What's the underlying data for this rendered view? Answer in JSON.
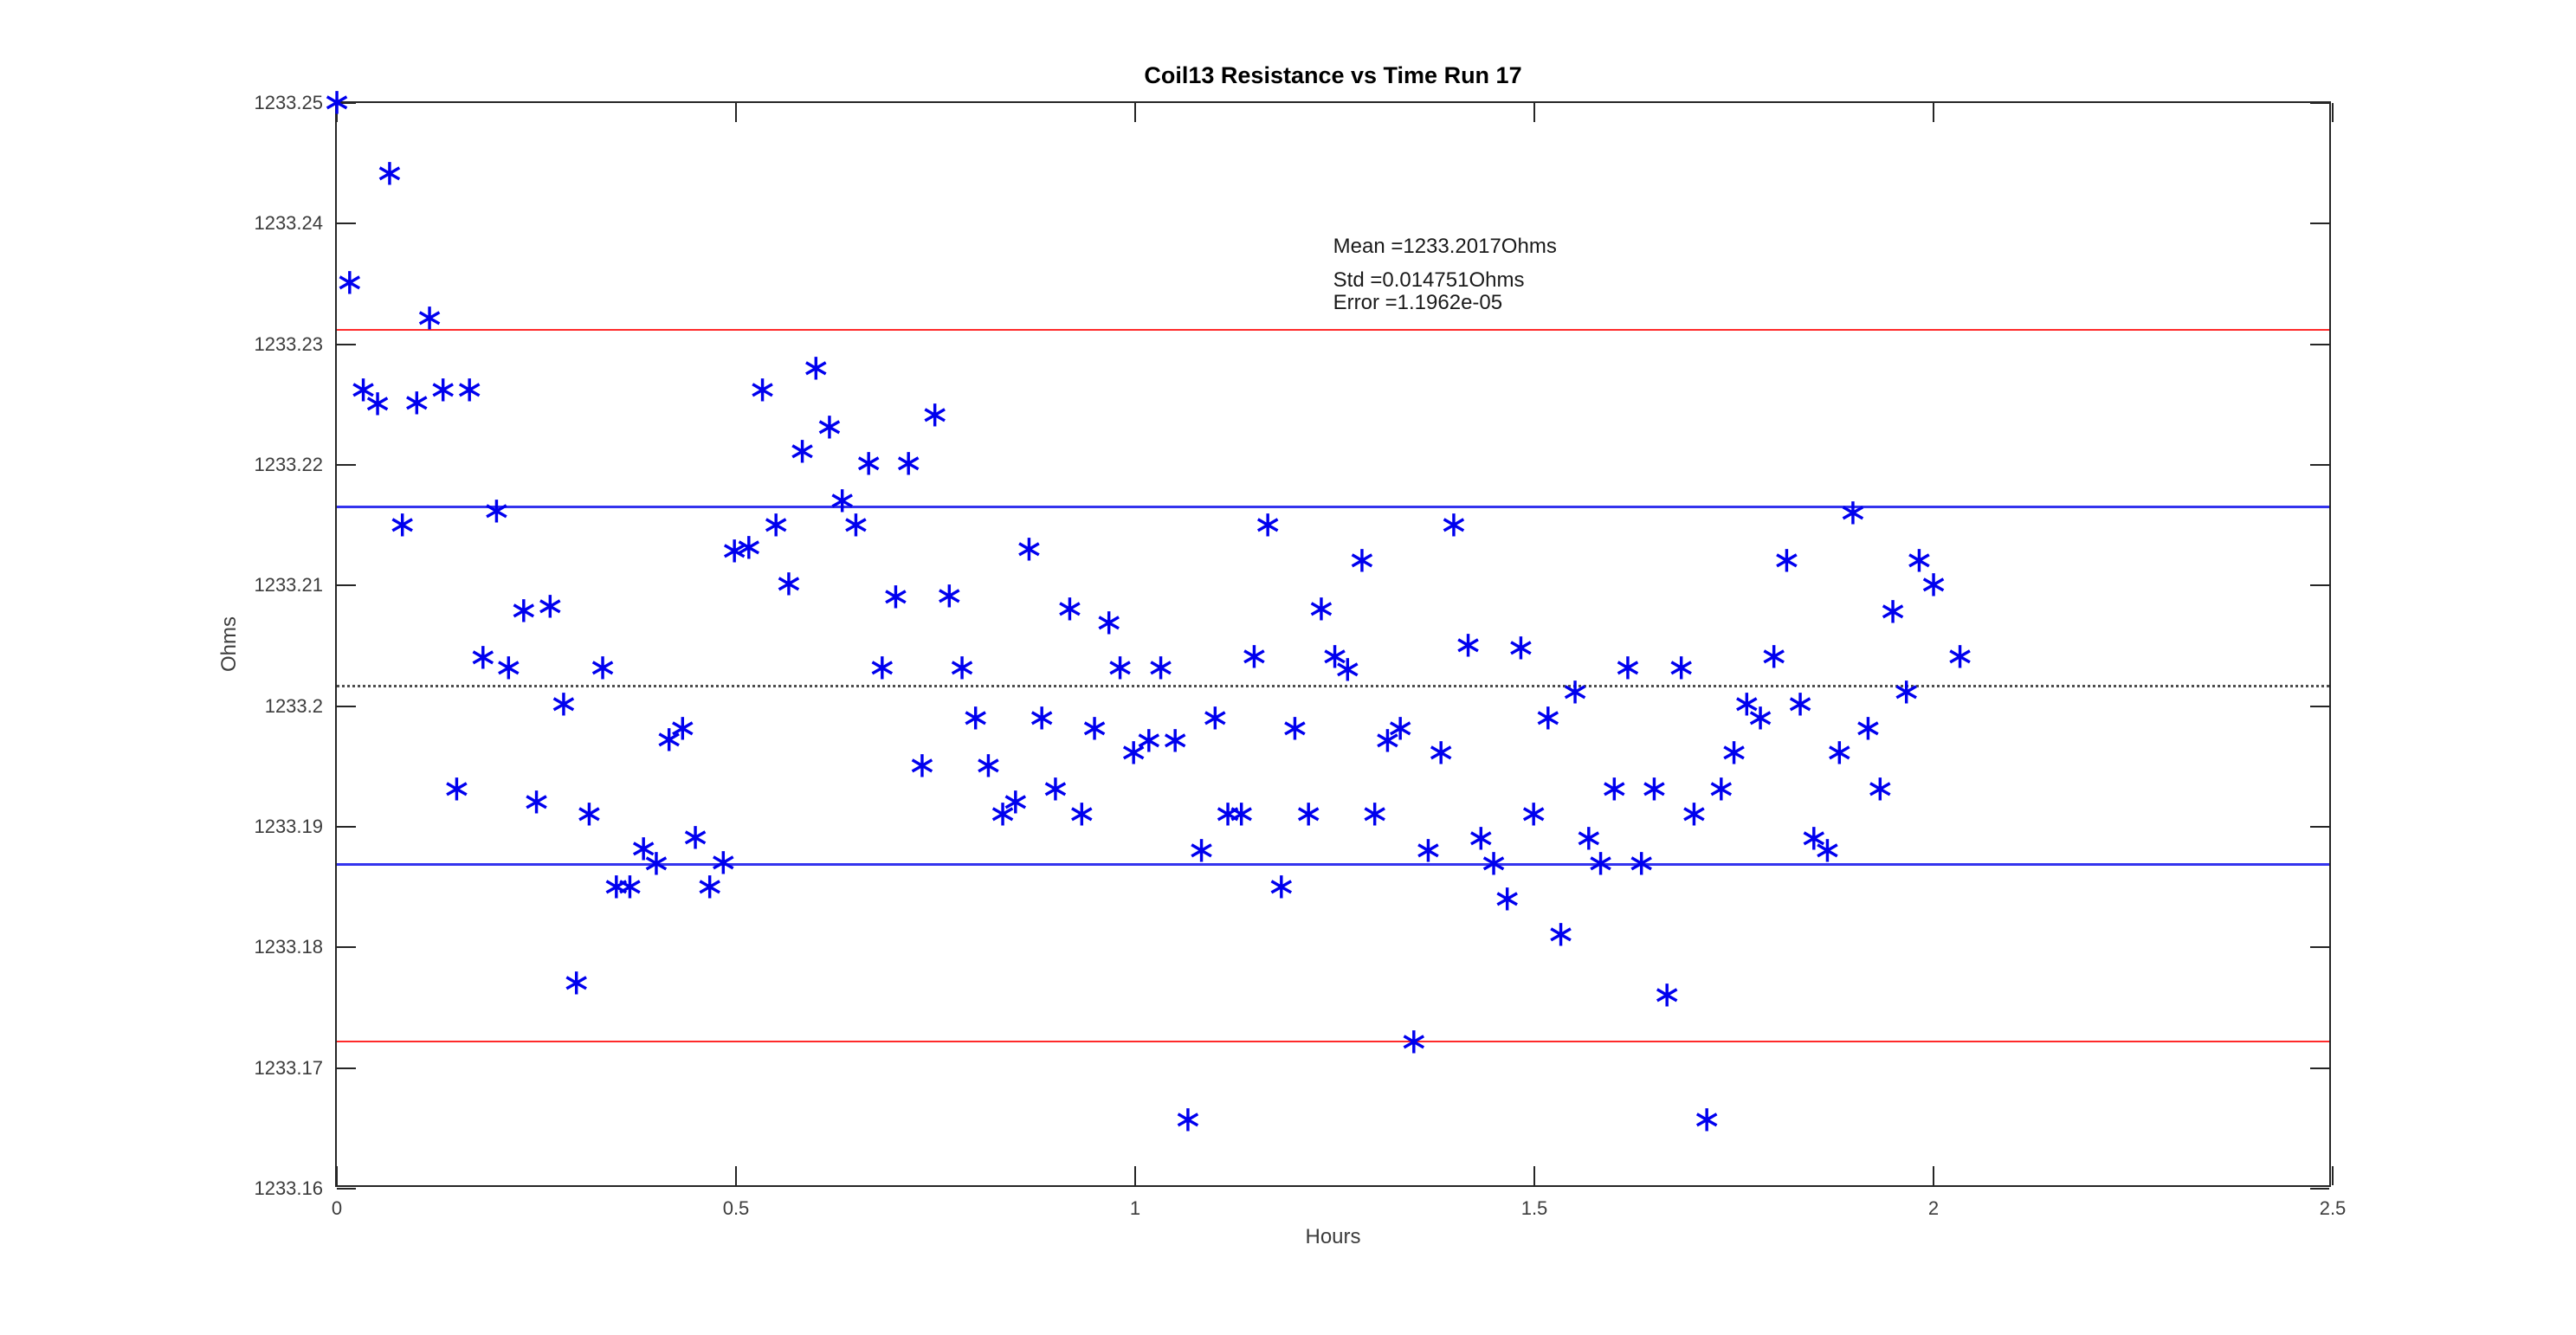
{
  "window": {
    "background": "#ffffff"
  },
  "chart_data": {
    "type": "scatter",
    "title": "Coil13 Resistance vs Time Run 17",
    "xlabel": "Hours",
    "ylabel": "Ohms",
    "xlim": [
      0,
      2.5
    ],
    "ylim": [
      1233.16,
      1233.25
    ],
    "grid": false,
    "marker": {
      "glyph": "∗",
      "color": "#0000ee",
      "semantic": "blue-asterisk-marker"
    },
    "xticks": [
      {
        "value": 0,
        "label": "0"
      },
      {
        "value": 0.5,
        "label": "0.5"
      },
      {
        "value": 1,
        "label": "1"
      },
      {
        "value": 1.5,
        "label": "1.5"
      },
      {
        "value": 2,
        "label": "2"
      },
      {
        "value": 2.5,
        "label": "2.5"
      }
    ],
    "yticks": [
      {
        "value": 1233.25,
        "label": "1233.25"
      },
      {
        "value": 1233.24,
        "label": "1233.24"
      },
      {
        "value": 1233.23,
        "label": "1233.23"
      },
      {
        "value": 1233.22,
        "label": "1233.22"
      },
      {
        "value": 1233.21,
        "label": "1233.21"
      },
      {
        "value": 1233.2,
        "label": "1233.2"
      },
      {
        "value": 1233.19,
        "label": "1233.19"
      },
      {
        "value": 1233.18,
        "label": "1233.18"
      },
      {
        "value": 1233.17,
        "label": "1233.17"
      },
      {
        "value": 1233.16,
        "label": "1233.16"
      }
    ],
    "lines": [
      {
        "name": "mean-line",
        "value": 1233.2017,
        "style": "dotted",
        "color": "#4d4d4d"
      },
      {
        "name": "plus-std-line",
        "value": 1233.2165,
        "style": "solid",
        "color": "#3333ee"
      },
      {
        "name": "minus-std-line",
        "value": 1233.1869,
        "style": "solid",
        "color": "#3333ee"
      },
      {
        "name": "plus-2std-line",
        "value": 1233.2312,
        "style": "thin",
        "color": "#ff2a2a"
      },
      {
        "name": "minus-2std-line",
        "value": 1233.1722,
        "style": "thin",
        "color": "#ff2a2a"
      }
    ],
    "annotations": [
      {
        "text": "Mean =1233.2017Ohms",
        "x": 1.248,
        "y": 1233.2381
      },
      {
        "text": "Std =0.014751Ohms",
        "x": 1.248,
        "y": 1233.2353
      },
      {
        "text": "Error =1.1962e-05",
        "x": 1.248,
        "y": 1233.2334
      }
    ],
    "stats": {
      "mean_ohms": 1233.2017,
      "std_ohms": 0.014751,
      "error": 1.1962e-05
    },
    "points": [
      [
        0.0,
        1233.25
      ],
      [
        0.066,
        1233.2441
      ],
      [
        0.016,
        1233.2351
      ],
      [
        0.116,
        1233.2321
      ],
      [
        0.033,
        1233.2262
      ],
      [
        0.051,
        1233.225
      ],
      [
        0.1,
        1233.2251
      ],
      [
        0.133,
        1233.2262
      ],
      [
        0.166,
        1233.2262
      ],
      [
        0.2,
        1233.2161
      ],
      [
        0.082,
        1233.215
      ],
      [
        0.234,
        1233.2079
      ],
      [
        0.267,
        1233.2082
      ],
      [
        0.498,
        1233.2128
      ],
      [
        0.183,
        1233.204
      ],
      [
        0.215,
        1233.2031
      ],
      [
        0.333,
        1233.2031
      ],
      [
        0.284,
        1233.2001
      ],
      [
        0.416,
        1233.1972
      ],
      [
        0.433,
        1233.1981
      ],
      [
        0.15,
        1233.1931
      ],
      [
        0.25,
        1233.192
      ],
      [
        0.316,
        1233.191
      ],
      [
        0.384,
        1233.1881
      ],
      [
        0.4,
        1233.1869
      ],
      [
        0.449,
        1233.1891
      ],
      [
        0.484,
        1233.187
      ],
      [
        0.35,
        1233.185
      ],
      [
        0.367,
        1233.185
      ],
      [
        0.467,
        1233.185
      ],
      [
        0.3,
        1233.177
      ],
      [
        0.6,
        1233.228
      ],
      [
        0.533,
        1233.2262
      ],
      [
        0.749,
        1233.2241
      ],
      [
        0.617,
        1233.2231
      ],
      [
        0.583,
        1233.2211
      ],
      [
        0.666,
        1233.2201
      ],
      [
        0.716,
        1233.2201
      ],
      [
        0.633,
        1233.217
      ],
      [
        0.55,
        1233.215
      ],
      [
        0.65,
        1233.215
      ],
      [
        0.516,
        1233.2131
      ],
      [
        0.867,
        1233.213
      ],
      [
        0.566,
        1233.2101
      ],
      [
        0.7,
        1233.209
      ],
      [
        0.767,
        1233.2091
      ],
      [
        0.918,
        1233.208
      ],
      [
        0.967,
        1233.2069
      ],
      [
        0.683,
        1233.2031
      ],
      [
        0.783,
        1233.2031
      ],
      [
        0.981,
        1233.2031
      ],
      [
        0.8,
        1233.199
      ],
      [
        0.883,
        1233.199
      ],
      [
        0.949,
        1233.1981
      ],
      [
        0.998,
        1233.1961
      ],
      [
        0.733,
        1233.195
      ],
      [
        0.816,
        1233.195
      ],
      [
        0.9,
        1233.1931
      ],
      [
        0.85,
        1233.192
      ],
      [
        0.834,
        1233.191
      ],
      [
        0.933,
        1233.191
      ],
      [
        1.166,
        1233.215
      ],
      [
        1.399,
        1233.215
      ],
      [
        1.284,
        1233.212
      ],
      [
        1.233,
        1233.208
      ],
      [
        1.417,
        1233.205
      ],
      [
        1.483,
        1233.2048
      ],
      [
        1.149,
        1233.2041
      ],
      [
        1.25,
        1233.2041
      ],
      [
        1.032,
        1233.2031
      ],
      [
        1.266,
        1233.203
      ],
      [
        1.1,
        1233.199
      ],
      [
        1.2,
        1233.1981
      ],
      [
        1.017,
        1233.1971
      ],
      [
        1.05,
        1233.1971
      ],
      [
        1.316,
        1233.1971
      ],
      [
        1.332,
        1233.1981
      ],
      [
        1.383,
        1233.1961
      ],
      [
        1.116,
        1233.191
      ],
      [
        1.133,
        1233.191
      ],
      [
        1.217,
        1233.191
      ],
      [
        1.3,
        1233.191
      ],
      [
        1.499,
        1233.191
      ],
      [
        1.433,
        1233.189
      ],
      [
        1.083,
        1233.188
      ],
      [
        1.367,
        1233.188
      ],
      [
        1.449,
        1233.1869
      ],
      [
        1.183,
        1233.185
      ],
      [
        1.466,
        1233.184
      ],
      [
        1.349,
        1233.1721
      ],
      [
        1.066,
        1233.1657
      ],
      [
        1.899,
        1233.216
      ],
      [
        1.816,
        1233.212
      ],
      [
        1.982,
        1233.212
      ],
      [
        2.0,
        1233.21
      ],
      [
        1.949,
        1233.2078
      ],
      [
        1.8,
        1233.2041
      ],
      [
        1.617,
        1233.2031
      ],
      [
        1.684,
        1233.2031
      ],
      [
        1.551,
        1233.2011
      ],
      [
        1.966,
        1233.2011
      ],
      [
        1.766,
        1233.2001
      ],
      [
        1.833,
        1233.2001
      ],
      [
        1.517,
        1233.199
      ],
      [
        1.783,
        1233.199
      ],
      [
        1.918,
        1233.1981
      ],
      [
        1.75,
        1233.1961
      ],
      [
        1.882,
        1233.1961
      ],
      [
        1.6,
        1233.1931
      ],
      [
        1.65,
        1233.1931
      ],
      [
        1.734,
        1233.1931
      ],
      [
        1.933,
        1233.1931
      ],
      [
        1.7,
        1233.191
      ],
      [
        1.568,
        1233.189
      ],
      [
        1.85,
        1233.189
      ],
      [
        1.867,
        1233.188
      ],
      [
        1.583,
        1233.1869
      ],
      [
        1.634,
        1233.1869
      ],
      [
        1.533,
        1233.181
      ],
      [
        1.666,
        1233.176
      ],
      [
        1.716,
        1233.1657
      ],
      [
        2.033,
        1233.2041
      ]
    ]
  }
}
